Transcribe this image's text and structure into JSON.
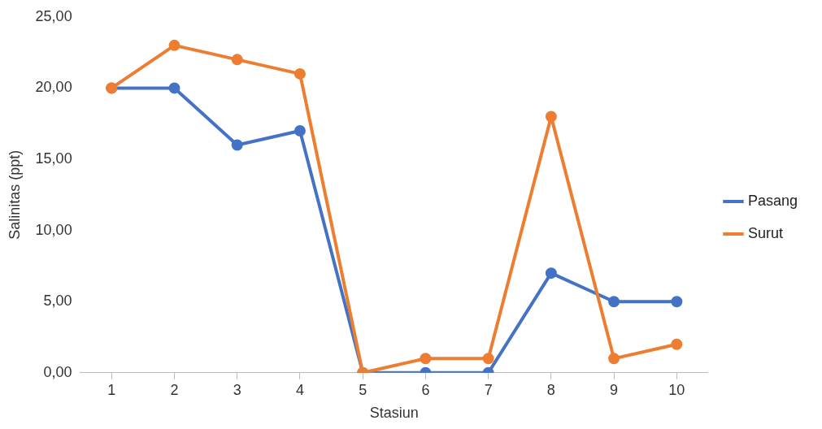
{
  "chart_data": {
    "type": "line",
    "xlabel": "Stasiun",
    "ylabel": "Salinitas (ppt)",
    "categories": [
      "1",
      "2",
      "3",
      "4",
      "5",
      "6",
      "7",
      "8",
      "9",
      "10"
    ],
    "series": [
      {
        "name": "Pasang",
        "color": "#4472c4",
        "values": [
          20,
          20,
          16,
          17,
          0,
          0,
          0,
          7,
          5,
          5
        ]
      },
      {
        "name": "Surut",
        "color": "#ed7d31",
        "values": [
          20,
          23,
          22,
          21,
          0,
          1,
          1,
          18,
          1,
          2
        ]
      }
    ],
    "ylim": [
      0,
      25
    ],
    "yticks": [
      {
        "value": 0,
        "label": "0,00"
      },
      {
        "value": 5,
        "label": "5,00"
      },
      {
        "value": 10,
        "label": "10,00"
      },
      {
        "value": 15,
        "label": "15,00"
      },
      {
        "value": 20,
        "label": "20,00"
      },
      {
        "value": 25,
        "label": "25,00"
      }
    ],
    "grid": false,
    "legend": "right",
    "marker": "circle",
    "line_style": "solid"
  }
}
